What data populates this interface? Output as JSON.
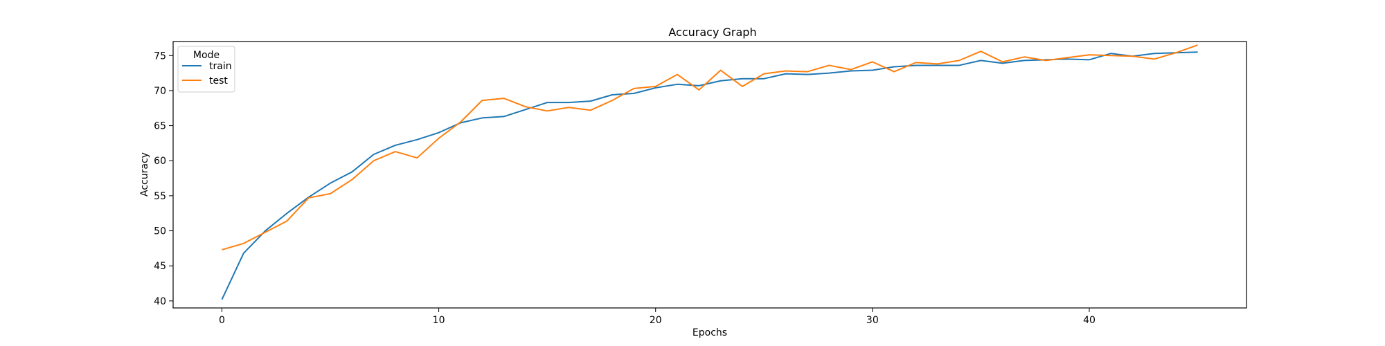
{
  "chart_data": {
    "type": "line",
    "title": "Accuracy Graph",
    "xlabel": "Epochs",
    "ylabel": "Accuracy",
    "xlim": [
      -2.25,
      47.25
    ],
    "ylim": [
      39.0,
      77.0
    ],
    "x_ticks": [
      0,
      10,
      20,
      30,
      40
    ],
    "y_ticks": [
      40,
      45,
      50,
      55,
      60,
      65,
      70,
      75
    ],
    "grid": false,
    "legend": {
      "title": "Mode",
      "position": "top-left",
      "entries": [
        "train",
        "test"
      ]
    },
    "x": [
      0,
      1,
      2,
      3,
      4,
      5,
      6,
      7,
      8,
      9,
      10,
      11,
      12,
      13,
      14,
      15,
      16,
      17,
      18,
      19,
      20,
      21,
      22,
      23,
      24,
      25,
      26,
      27,
      28,
      29,
      30,
      31,
      32,
      33,
      34,
      35,
      36,
      37,
      38,
      39,
      40,
      41,
      42,
      43,
      44,
      45
    ],
    "series": [
      {
        "name": "train",
        "color": "#1f77b4",
        "values": [
          40.2,
          46.8,
          50.0,
          52.5,
          54.8,
          56.8,
          58.4,
          60.9,
          62.2,
          63.0,
          64.0,
          65.4,
          66.1,
          66.3,
          67.3,
          68.3,
          68.3,
          68.5,
          69.4,
          69.6,
          70.4,
          70.9,
          70.7,
          71.4,
          71.7,
          71.7,
          72.4,
          72.3,
          72.5,
          72.8,
          72.9,
          73.4,
          73.6,
          73.6,
          73.6,
          74.3,
          73.9,
          74.3,
          74.4,
          74.5,
          74.4,
          75.3,
          74.9,
          75.3,
          75.4,
          75.5
        ],
        "style": "solid"
      },
      {
        "name": "test",
        "color": "#ff7f0e",
        "values": [
          47.3,
          48.2,
          49.8,
          51.4,
          54.7,
          55.3,
          57.3,
          60.0,
          61.3,
          60.4,
          63.2,
          65.5,
          68.6,
          68.9,
          67.7,
          67.1,
          67.6,
          67.2,
          68.6,
          70.3,
          70.6,
          72.3,
          70.1,
          72.9,
          70.6,
          72.4,
          72.8,
          72.7,
          73.6,
          73.0,
          74.1,
          72.7,
          74.0,
          73.8,
          74.3,
          75.6,
          74.1,
          74.8,
          74.3,
          74.7,
          75.1,
          75.0,
          74.9,
          74.5,
          75.4,
          76.5
        ],
        "style": "solid"
      }
    ]
  }
}
